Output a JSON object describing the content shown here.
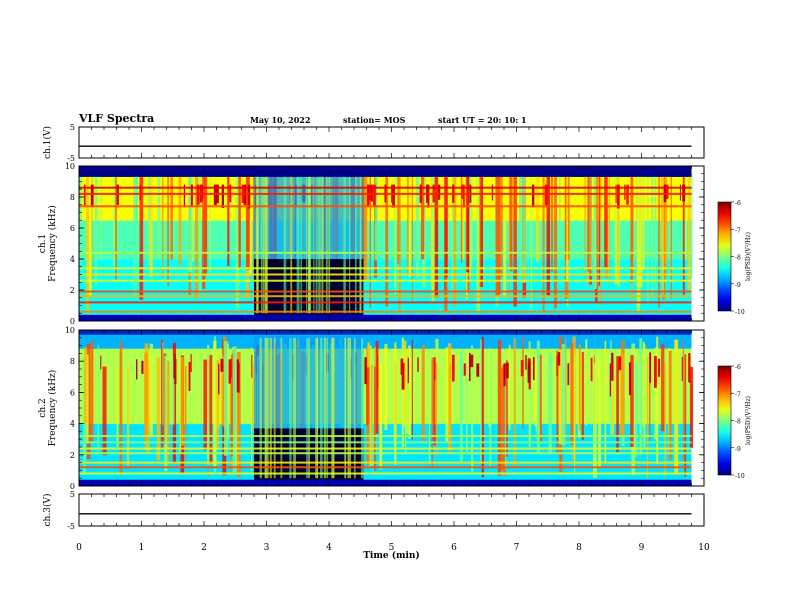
{
  "header": {
    "title": "VLF Spectra",
    "date": "May 10, 2022",
    "station": "station= MOS",
    "start": "start  UT =   20: 10: 1"
  },
  "chart_data": [
    {
      "type": "line",
      "panel": "ch1-voltage",
      "ylabel": "ch.1(V)",
      "ylim": [
        -5,
        5
      ],
      "y_ticks": [
        "5",
        "-5"
      ],
      "x_range": [
        0,
        9.8
      ],
      "value": -1.2,
      "color": "#000000"
    },
    {
      "type": "heatmap",
      "panel": "ch1-spectrogram",
      "ylabel": "ch.1\nFrequency (kHz)",
      "ylim": [
        0,
        10
      ],
      "y_ticks": [
        "0",
        "2",
        "4",
        "6",
        "8",
        "10"
      ],
      "x_range": [
        0,
        9.8
      ],
      "quiet_interval_min": [
        2.8,
        4.55
      ],
      "colorbar": {
        "label": "log(PSD)(V²/Hz)",
        "min": -10,
        "max": -6,
        "ticks": [
          "-6",
          "-7",
          "-8",
          "-9",
          "-10"
        ]
      }
    },
    {
      "type": "heatmap",
      "panel": "ch2-spectrogram",
      "ylabel": "ch.2\nFrequency (kHz)",
      "ylim": [
        0,
        10
      ],
      "y_ticks": [
        "0",
        "2",
        "4",
        "6",
        "8",
        "10"
      ],
      "x_range": [
        0,
        9.8
      ],
      "quiet_interval_min": [
        2.8,
        4.55
      ],
      "colorbar": {
        "label": "log(PSD)(V²/Hz)",
        "min": -10,
        "max": -6,
        "ticks": [
          "-6",
          "-7",
          "-8",
          "-9",
          "-10"
        ]
      }
    },
    {
      "type": "line",
      "panel": "ch3-voltage",
      "ylabel": "ch.3(V)",
      "ylim": [
        -5,
        5
      ],
      "y_ticks": [
        "5",
        "-5"
      ],
      "x_range": [
        0,
        9.8
      ],
      "value": -1.2,
      "color": "#000000"
    }
  ],
  "x_axis": {
    "label": "Time  (min)",
    "ticks": [
      "0",
      "1",
      "2",
      "3",
      "4",
      "5",
      "6",
      "7",
      "8",
      "9",
      "10"
    ],
    "range": [
      0,
      10
    ]
  }
}
